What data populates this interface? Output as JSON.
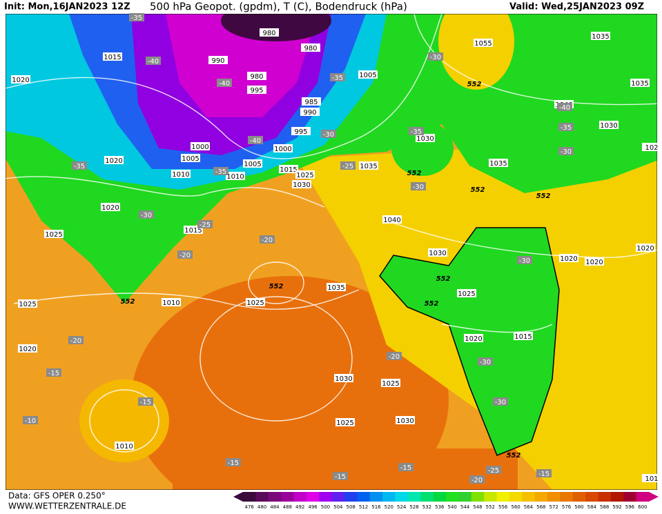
{
  "header": {
    "init": "Init: Mon,16JAN2023 12Z",
    "title": "500 hPa Geopot. (gpdm), T (C), Bodendruck (hPa)",
    "valid": "Valid: Wed,25JAN2023 09Z"
  },
  "footer": {
    "data": "Data: GFS OPER 0.250°",
    "site": "WWW.WETTERZENTRALE.DE"
  },
  "isobar_labels": [
    1015,
    1020,
    990,
    980,
    980,
    980,
    995,
    985,
    990,
    995,
    1000,
    1000,
    1005,
    1005,
    1010,
    1010,
    1020,
    1015,
    1025,
    1030,
    1035,
    1005,
    1055,
    1035,
    1035,
    1040,
    1030,
    1030,
    1035,
    1020,
    1015,
    1025,
    1040,
    1030,
    1020,
    1020,
    1020,
    1035,
    1025,
    1025,
    1010,
    1025,
    1020,
    1015,
    1020,
    1030,
    1025,
    1025,
    1030,
    1010,
    102,
    101
  ],
  "temperature_labels": [
    -35,
    -40,
    -40,
    -35,
    -30,
    -30,
    -40,
    -35,
    -25,
    -35,
    -30,
    -25,
    -20,
    -20,
    -30,
    -35,
    -40,
    -35,
    -30,
    -30,
    -20,
    -15,
    -20,
    -30,
    -30,
    -15,
    -10,
    -15,
    -15,
    -15,
    -20,
    -25,
    -15
  ],
  "height_labels": [
    552,
    552,
    552,
    552,
    552,
    552,
    552,
    552,
    552
  ],
  "colorbar": {
    "labels": [
      476,
      480,
      484,
      488,
      492,
      496,
      500,
      504,
      508,
      512,
      516,
      520,
      524,
      528,
      532,
      536,
      540,
      544,
      548,
      552,
      556,
      560,
      564,
      568,
      572,
      576,
      580,
      584,
      588,
      592,
      596,
      600
    ],
    "colors": [
      "#3a0a3a",
      "#5a0a5a",
      "#7a0a7a",
      "#9a009a",
      "#c000c8",
      "#e000e8",
      "#a000f0",
      "#6020f0",
      "#2040f0",
      "#0060f0",
      "#0090f0",
      "#00b8f0",
      "#00d8e8",
      "#00e8b0",
      "#00e070",
      "#00d840",
      "#20e020",
      "#30d030",
      "#80e000",
      "#c8e800",
      "#f0f000",
      "#f5d800",
      "#f5c000",
      "#f5a800",
      "#f09000",
      "#e87800",
      "#e06000",
      "#d84800",
      "#c83000",
      "#b01800",
      "#a00030",
      "#d00080"
    ]
  }
}
